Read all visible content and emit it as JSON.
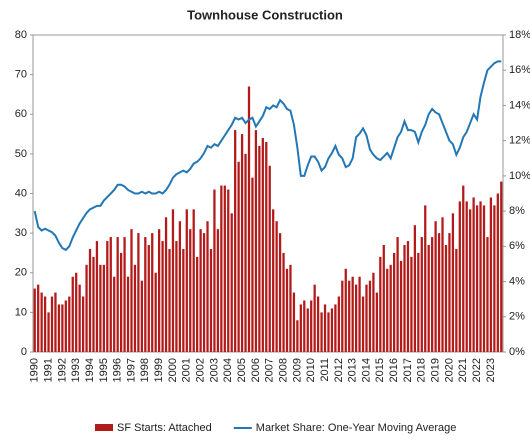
{
  "chart_data": {
    "type": "combo",
    "title": "Townhouse Construction",
    "categories": [
      "1990",
      null,
      null,
      null,
      "1991",
      null,
      null,
      null,
      "1992",
      null,
      null,
      null,
      "1993",
      null,
      null,
      null,
      "1994",
      null,
      null,
      null,
      "1995",
      null,
      null,
      null,
      "1996",
      null,
      null,
      null,
      "1997",
      null,
      null,
      null,
      "1998",
      null,
      null,
      null,
      "1999",
      null,
      null,
      null,
      "2000",
      null,
      null,
      null,
      "2001",
      null,
      null,
      null,
      "2002",
      null,
      null,
      null,
      "2003",
      null,
      null,
      null,
      "2004",
      null,
      null,
      null,
      "2005",
      null,
      null,
      null,
      "2006",
      null,
      null,
      null,
      "2007",
      null,
      null,
      null,
      "2008",
      null,
      null,
      null,
      "2009",
      null,
      null,
      null,
      "2010",
      null,
      null,
      null,
      "2011",
      null,
      null,
      null,
      "2012",
      null,
      null,
      null,
      "2013",
      null,
      null,
      null,
      "2014",
      null,
      null,
      null,
      "2015",
      null,
      null,
      null,
      "2016",
      null,
      null,
      null,
      "2017",
      null,
      null,
      null,
      "2018",
      null,
      null,
      null,
      "2019",
      null,
      null,
      null,
      "2020",
      null,
      null,
      null,
      "2021",
      null,
      null,
      null,
      "2022",
      null,
      null,
      null,
      "2023",
      null,
      null,
      null
    ],
    "series": [
      {
        "name": "SF Starts: Attached",
        "type": "bar",
        "color": "#b31b1b",
        "values": [
          16,
          17,
          15,
          14,
          10,
          14,
          15,
          12,
          12,
          13,
          14,
          19,
          20,
          17,
          14,
          22,
          26,
          24,
          28,
          22,
          22,
          28,
          29,
          19,
          29,
          25,
          29,
          19,
          31,
          22,
          30,
          18,
          29,
          27,
          30,
          20,
          31,
          28,
          34,
          26,
          36,
          28,
          33,
          26,
          36,
          31,
          36,
          24,
          31,
          30,
          33,
          26,
          41,
          31,
          42,
          42,
          41,
          35,
          56,
          48,
          55,
          50,
          67,
          44,
          56,
          52,
          54,
          53,
          47,
          36,
          33,
          30,
          25,
          21,
          22,
          15,
          8,
          12,
          13,
          11,
          13,
          17,
          14,
          10,
          12,
          10,
          11,
          12,
          14,
          18,
          21,
          18,
          19,
          17,
          19,
          14,
          17,
          18,
          20,
          15,
          24,
          27,
          21,
          22,
          25,
          29,
          23,
          27,
          28,
          24,
          32,
          25,
          29,
          37,
          27,
          29,
          33,
          30,
          34,
          27,
          30,
          35,
          26,
          38,
          42,
          38,
          36,
          39,
          37,
          38,
          37,
          29,
          39,
          37,
          40,
          43
        ]
      },
      {
        "name": "Market Share: One-Year Moving Average",
        "type": "line",
        "axis": "y2",
        "color": "#2477b5",
        "values": [
          8.0,
          7.1,
          6.9,
          7.0,
          6.9,
          6.8,
          6.6,
          6.2,
          5.9,
          5.8,
          6.0,
          6.5,
          6.9,
          7.3,
          7.6,
          7.9,
          8.1,
          8.2,
          8.3,
          8.3,
          8.6,
          8.8,
          9.0,
          9.2,
          9.5,
          9.5,
          9.4,
          9.2,
          9.1,
          9.0,
          9.0,
          9.1,
          9.0,
          9.1,
          9.0,
          9.0,
          9.1,
          9.0,
          9.2,
          9.5,
          9.9,
          10.1,
          10.2,
          10.3,
          10.2,
          10.4,
          10.7,
          10.8,
          11.0,
          11.3,
          11.7,
          11.6,
          11.8,
          11.7,
          12.0,
          12.3,
          12.6,
          12.9,
          13.3,
          13.2,
          13.3,
          13.0,
          13.2,
          13.3,
          12.8,
          13.1,
          13.4,
          13.9,
          13.8,
          14.0,
          13.9,
          14.3,
          14.1,
          13.8,
          13.7,
          12.9,
          11.6,
          10.0,
          10.0,
          10.6,
          11.1,
          11.1,
          10.8,
          10.3,
          10.5,
          11.0,
          11.3,
          11.7,
          11.2,
          11.0,
          10.5,
          10.6,
          11.0,
          12.2,
          12.4,
          12.7,
          12.3,
          11.5,
          11.2,
          11.0,
          10.9,
          11.1,
          11.3,
          11.0,
          11.6,
          12.2,
          12.5,
          13.1,
          12.6,
          12.6,
          12.5,
          11.9,
          12.5,
          12.9,
          13.5,
          13.8,
          13.6,
          13.5,
          13.0,
          12.5,
          12.0,
          11.8,
          11.2,
          11.6,
          12.2,
          12.5,
          13.0,
          13.5,
          13.2,
          14.5,
          15.3,
          16.0,
          16.2,
          16.4,
          16.5,
          16.5
        ]
      }
    ],
    "ylim": [
      0,
      80
    ],
    "yticks": [
      0,
      10,
      20,
      30,
      40,
      50,
      60,
      70,
      80
    ],
    "y2lim": [
      0,
      18
    ],
    "y2ticks": [
      {
        "value": 0,
        "label": "0%"
      },
      {
        "value": 2,
        "label": "2%"
      },
      {
        "value": 4,
        "label": "4%"
      },
      {
        "value": 6,
        "label": "6%"
      },
      {
        "value": 8,
        "label": "8%"
      },
      {
        "value": 10,
        "label": "10%"
      },
      {
        "value": 12,
        "label": "12%"
      },
      {
        "value": 14,
        "label": "14%"
      },
      {
        "value": 16,
        "label": "16%"
      },
      {
        "value": 18,
        "label": "18%"
      }
    ],
    "legend": "bottom",
    "grid": false
  }
}
